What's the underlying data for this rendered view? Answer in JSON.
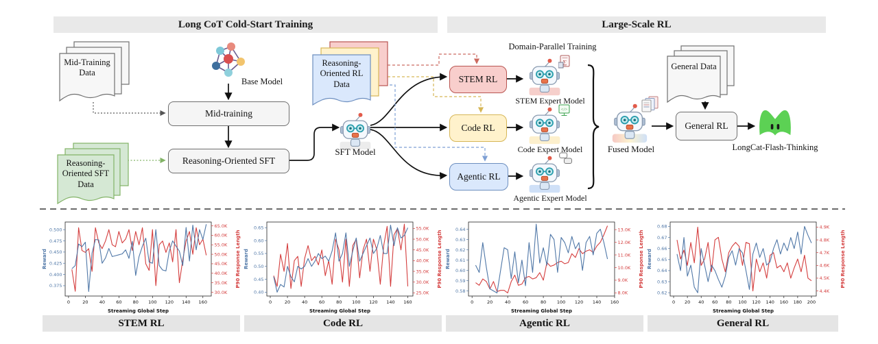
{
  "sections": {
    "left_header": "Long CoT Cold-Start Training",
    "right_header": "Large-Scale RL"
  },
  "pipeline": {
    "mid_training_data": "Mid-Training Data",
    "base_model": "Base Model",
    "mid_training": "Mid-training",
    "reasoning_sft_data": "Reasoning-Oriented SFT Data",
    "reasoning_sft": "Reasoning-Oriented SFT",
    "rl_data": "Reasoning-Oriented RL Data",
    "sft_model": "SFT Model",
    "domain_parallel": "Domain-Parallel Training",
    "stem_rl": "STEM RL",
    "code_rl": "Code RL",
    "agentic_rl": "Agentic RL",
    "stem_expert": "STEM Expert Model",
    "code_expert": "Code Expert Model",
    "agentic_expert": "Agentic Expert Model",
    "fused_model": "Fused Model",
    "general_data": "General Data",
    "general_rl": "General RL",
    "longcat": "LongCat-Flash-Thinking"
  },
  "icons": {
    "stem_badge_glyph": "∑",
    "code_badge_glyph": "</>"
  },
  "colors": {
    "reward_line": "#4f77a7",
    "p90_line": "#d43d3d",
    "stem_fill": "#f8cecc",
    "stem_border": "#b85450",
    "code_fill": "#fff2cc",
    "code_border": "#d6b656",
    "agentic_fill": "#dae8fc",
    "agentic_border": "#6c8ebf",
    "green_doc_fill": "#d5e8d4",
    "green_doc_border": "#82b366",
    "logo_green": "#5cd154"
  },
  "chart_data": [
    {
      "type": "line",
      "title": "STEM RL",
      "xlabel": "Streaming Global Step",
      "ylabel_left": "Reward",
      "ylabel_right": "P90 Response Length",
      "legend": false,
      "x_ticks": [
        0,
        20,
        40,
        60,
        80,
        100,
        120,
        140,
        160
      ],
      "xlim": [
        -4,
        170
      ],
      "ylim_left": [
        0.352,
        0.517
      ],
      "ylim_right": [
        28,
        67
      ],
      "left_ticks": [
        {
          "v": 0.375,
          "label": "0.375"
        },
        {
          "v": 0.4,
          "label": "0.400"
        },
        {
          "v": 0.425,
          "label": "0.425"
        },
        {
          "v": 0.45,
          "label": "0.450"
        },
        {
          "v": 0.475,
          "label": "0.475"
        },
        {
          "v": 0.5,
          "label": "0.500"
        }
      ],
      "right_ticks": [
        {
          "v": 30,
          "label": "30.0K"
        },
        {
          "v": 35,
          "label": "35.0K"
        },
        {
          "v": 40,
          "label": "40.0K"
        },
        {
          "v": 45,
          "label": "45.0K"
        },
        {
          "v": 50,
          "label": "50.0K"
        },
        {
          "v": 55,
          "label": "55.0K"
        },
        {
          "v": 60,
          "label": "60.0K"
        },
        {
          "v": 65,
          "label": "65.0K"
        }
      ],
      "series": {
        "reward": {
          "x": [
            4,
            8,
            12,
            16,
            20,
            24,
            28,
            32,
            36,
            40,
            44,
            48,
            52,
            56,
            60,
            64,
            68,
            72,
            76,
            80,
            84,
            88,
            92,
            96,
            100,
            104,
            108,
            112,
            116,
            120,
            124,
            128,
            132,
            136,
            140,
            144,
            148,
            152,
            156,
            160,
            164
          ],
          "y": [
            0.413,
            0.42,
            0.468,
            0.462,
            0.472,
            0.362,
            0.448,
            0.478,
            0.477,
            0.425,
            0.437,
            0.458,
            0.44,
            0.442,
            0.444,
            0.446,
            0.455,
            0.436,
            0.474,
            0.398,
            0.44,
            0.463,
            0.481,
            0.428,
            0.425,
            0.5,
            0.42,
            0.41,
            0.408,
            0.452,
            0.475,
            0.463,
            0.452,
            0.42,
            0.505,
            0.43,
            0.51,
            0.455,
            0.5,
            0.478,
            0.512
          ]
        },
        "p90": {
          "x": [
            4,
            8,
            12,
            16,
            20,
            24,
            28,
            32,
            36,
            40,
            44,
            48,
            52,
            56,
            60,
            64,
            68,
            72,
            76,
            80,
            84,
            88,
            92,
            96,
            100,
            104,
            108,
            112,
            116,
            120,
            124,
            128,
            132,
            136,
            140,
            144,
            148,
            152,
            156,
            160,
            164
          ],
          "y": [
            42,
            30.5,
            64,
            52,
            51,
            53,
            41,
            64,
            56,
            53,
            57,
            63,
            55,
            54,
            62,
            56,
            58,
            63,
            52,
            62,
            55,
            64,
            45,
            41.5,
            63,
            33.5,
            55,
            57,
            51,
            56,
            46,
            63,
            35,
            47,
            57,
            62,
            50,
            64,
            55,
            58,
            49.5
          ]
        }
      }
    },
    {
      "type": "line",
      "title": "Code RL",
      "xlabel": "Streaming Global Step",
      "ylabel_left": "Reward",
      "ylabel_right": "P90 Response Length",
      "legend": false,
      "x_ticks": [
        0,
        20,
        40,
        60,
        80,
        100,
        120,
        140,
        160
      ],
      "xlim": [
        -4,
        166
      ],
      "ylim_left": [
        0.385,
        0.672
      ],
      "ylim_right": [
        23.5,
        58
      ],
      "left_ticks": [
        {
          "v": 0.4,
          "label": "0.40"
        },
        {
          "v": 0.45,
          "label": "0.45"
        },
        {
          "v": 0.5,
          "label": "0.50"
        },
        {
          "v": 0.55,
          "label": "0.55"
        },
        {
          "v": 0.6,
          "label": "0.60"
        },
        {
          "v": 0.65,
          "label": "0.65"
        }
      ],
      "right_ticks": [
        {
          "v": 25,
          "label": "25.0K"
        },
        {
          "v": 30,
          "label": "30.0K"
        },
        {
          "v": 35,
          "label": "35.0K"
        },
        {
          "v": 40,
          "label": "40.0K"
        },
        {
          "v": 45,
          "label": "45.0K"
        },
        {
          "v": 50,
          "label": "50.0K"
        },
        {
          "v": 55,
          "label": "55.0K"
        }
      ],
      "series": {
        "reward": {
          "x": [
            4,
            8,
            12,
            16,
            20,
            24,
            28,
            32,
            36,
            40,
            44,
            48,
            52,
            56,
            60,
            64,
            68,
            72,
            76,
            80,
            84,
            88,
            92,
            96,
            100,
            104,
            108,
            112,
            116,
            120,
            124,
            128,
            132,
            136,
            140,
            144,
            148,
            152,
            156,
            160
          ],
          "y": [
            0.46,
            0.4,
            0.43,
            0.42,
            0.5,
            0.46,
            0.44,
            0.5,
            0.49,
            0.5,
            0.53,
            0.5,
            0.52,
            0.55,
            0.53,
            0.54,
            0.52,
            0.56,
            0.63,
            0.52,
            0.55,
            0.63,
            0.5,
            0.56,
            0.61,
            0.52,
            0.55,
            0.58,
            0.61,
            0.55,
            0.57,
            0.62,
            0.55,
            0.55,
            0.66,
            0.58,
            0.65,
            0.61,
            0.62,
            0.65
          ]
        },
        "p90": {
          "x": [
            4,
            8,
            12,
            16,
            20,
            24,
            28,
            32,
            36,
            40,
            44,
            48,
            52,
            56,
            60,
            64,
            68,
            72,
            76,
            80,
            84,
            88,
            92,
            96,
            100,
            104,
            108,
            112,
            116,
            120,
            124,
            128,
            132,
            136,
            140,
            144,
            148,
            152,
            156,
            160
          ],
          "y": [
            33,
            28,
            43,
            35,
            48,
            27,
            40,
            42,
            28,
            41,
            47,
            40,
            42,
            38,
            45,
            33,
            40,
            29,
            50,
            45,
            30,
            50,
            28,
            47,
            50,
            32,
            45,
            50,
            35,
            50,
            45,
            29,
            47,
            56,
            28,
            52,
            55,
            45,
            57,
            28
          ]
        }
      }
    },
    {
      "type": "line",
      "title": "Agentic RL",
      "xlabel": "Streaming Global Step",
      "ylabel_left": "Reward",
      "ylabel_right": "P90 Response Length",
      "legend": false,
      "x_ticks": [
        0,
        20,
        40,
        60,
        80,
        100,
        120,
        140,
        160
      ],
      "xlim": [
        -4,
        160
      ],
      "ylim_left": [
        0.575,
        0.647
      ],
      "ylim_right": [
        7.75,
        13.6
      ],
      "left_ticks": [
        {
          "v": 0.58,
          "label": "0.58"
        },
        {
          "v": 0.59,
          "label": "0.59"
        },
        {
          "v": 0.6,
          "label": "0.60"
        },
        {
          "v": 0.61,
          "label": "0.61"
        },
        {
          "v": 0.62,
          "label": "0.62"
        },
        {
          "v": 0.63,
          "label": "0.63"
        },
        {
          "v": 0.64,
          "label": "0.64"
        }
      ],
      "right_ticks": [
        {
          "v": 8,
          "label": "8.0K"
        },
        {
          "v": 9,
          "label": "9.0K"
        },
        {
          "v": 10,
          "label": "10.0K"
        },
        {
          "v": 11,
          "label": "11.0K"
        },
        {
          "v": 12,
          "label": "12.0K"
        },
        {
          "v": 13,
          "label": "13.0K"
        }
      ],
      "series": {
        "reward": {
          "x": [
            4,
            8,
            12,
            16,
            20,
            24,
            28,
            32,
            36,
            40,
            44,
            48,
            52,
            56,
            60,
            64,
            68,
            72,
            76,
            80,
            84,
            88,
            92,
            96,
            100,
            104,
            108,
            112,
            116,
            120,
            124,
            128,
            132,
            136,
            140,
            144,
            148,
            152
          ],
          "y": [
            0.605,
            0.598,
            0.627,
            0.603,
            0.582,
            0.58,
            0.578,
            0.6,
            0.622,
            0.62,
            0.592,
            0.618,
            0.588,
            0.61,
            0.585,
            0.627,
            0.598,
            0.645,
            0.607,
            0.622,
            0.605,
            0.635,
            0.63,
            0.598,
            0.632,
            0.627,
            0.617,
            0.633,
            0.621,
            0.627,
            0.6,
            0.627,
            0.633,
            0.615,
            0.636,
            0.64,
            0.627,
            0.611
          ]
        },
        "p90": {
          "x": [
            4,
            8,
            12,
            16,
            20,
            24,
            28,
            32,
            36,
            40,
            44,
            48,
            52,
            56,
            60,
            64,
            68,
            72,
            76,
            80,
            84,
            88,
            92,
            96,
            100,
            104,
            108,
            112,
            116,
            120,
            124,
            128,
            132,
            136,
            140,
            144,
            148,
            152
          ],
          "y": [
            8.8,
            8.6,
            9.1,
            8.9,
            8.3,
            8.9,
            8.1,
            8.2,
            8.2,
            8.0,
            8.9,
            9.4,
            8.6,
            8.7,
            9.2,
            9.3,
            9.1,
            9.2,
            9.6,
            9.0,
            10.4,
            10.1,
            10.2,
            10.4,
            10.5,
            10.3,
            10.4,
            11.1,
            10.8,
            11.5,
            11.1,
            11.3,
            11.4,
            11.2,
            11.7,
            12.0,
            12.6,
            13.3
          ]
        }
      }
    },
    {
      "type": "line",
      "title": "General RL",
      "xlabel": "Streaming Global Step",
      "ylabel_left": "Reward",
      "ylabel_right": "P90 Response Length",
      "legend": false,
      "x_ticks": [
        0,
        20,
        40,
        60,
        80,
        100,
        120,
        140,
        160,
        180,
        200
      ],
      "xlim": [
        -5,
        207
      ],
      "ylim_left": [
        0.617,
        0.684
      ],
      "ylim_right": [
        4.36,
        4.94
      ],
      "left_ticks": [
        {
          "v": 0.62,
          "label": "0.62"
        },
        {
          "v": 0.63,
          "label": "0.63"
        },
        {
          "v": 0.64,
          "label": "0.64"
        },
        {
          "v": 0.65,
          "label": "0.65"
        },
        {
          "v": 0.66,
          "label": "0.66"
        },
        {
          "v": 0.67,
          "label": "0.67"
        },
        {
          "v": 0.68,
          "label": "0.68"
        }
      ],
      "right_ticks": [
        {
          "v": 4.4,
          "label": "4.4K"
        },
        {
          "v": 4.5,
          "label": "4.5K"
        },
        {
          "v": 4.6,
          "label": "4.6K"
        },
        {
          "v": 4.7,
          "label": "4.7K"
        },
        {
          "v": 4.8,
          "label": "4.8K"
        },
        {
          "v": 4.9,
          "label": "4.9K"
        }
      ],
      "series": {
        "reward": {
          "x": [
            5,
            10,
            15,
            20,
            25,
            30,
            35,
            40,
            45,
            50,
            55,
            60,
            65,
            70,
            75,
            80,
            85,
            90,
            95,
            100,
            105,
            110,
            115,
            120,
            125,
            130,
            135,
            140,
            145,
            150,
            155,
            160,
            165,
            170,
            175,
            180,
            185,
            190,
            195,
            200
          ],
          "y": [
            0.655,
            0.64,
            0.67,
            0.635,
            0.645,
            0.625,
            0.62,
            0.66,
            0.645,
            0.63,
            0.645,
            0.64,
            0.632,
            0.625,
            0.635,
            0.652,
            0.658,
            0.645,
            0.66,
            0.656,
            0.64,
            0.623,
            0.655,
            0.665,
            0.652,
            0.66,
            0.645,
            0.648,
            0.66,
            0.668,
            0.655,
            0.665,
            0.658,
            0.67,
            0.66,
            0.675,
            0.655,
            0.68,
            0.672,
            0.665
          ]
        },
        "p90": {
          "x": [
            5,
            10,
            15,
            20,
            25,
            30,
            35,
            40,
            45,
            50,
            55,
            60,
            65,
            70,
            75,
            80,
            85,
            90,
            95,
            100,
            105,
            110,
            115,
            120,
            125,
            130,
            135,
            140,
            145,
            150,
            155,
            160,
            165,
            170,
            175,
            180,
            185,
            190,
            195,
            200
          ],
          "y": [
            4.8,
            4.65,
            4.72,
            4.6,
            4.78,
            4.62,
            4.9,
            4.6,
            4.65,
            4.78,
            4.55,
            4.8,
            4.82,
            4.65,
            4.55,
            4.7,
            4.75,
            4.78,
            4.75,
            4.6,
            4.78,
            4.77,
            4.4,
            4.65,
            4.55,
            4.62,
            4.5,
            4.68,
            4.7,
            4.58,
            4.6,
            4.55,
            4.62,
            4.5,
            4.58,
            4.65,
            4.55,
            4.68,
            4.5,
            4.48
          ]
        }
      }
    }
  ]
}
